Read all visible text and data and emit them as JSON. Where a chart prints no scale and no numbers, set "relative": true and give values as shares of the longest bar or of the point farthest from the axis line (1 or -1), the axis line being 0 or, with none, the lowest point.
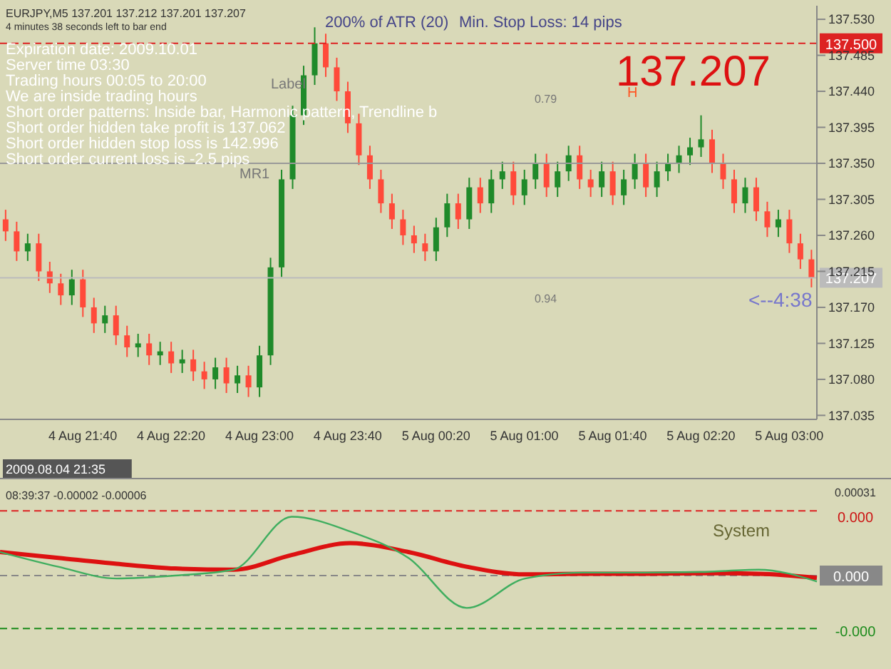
{
  "chart_data": [
    {
      "type": "candlestick",
      "categories": [
        null,
        null,
        null,
        null,
        null,
        null,
        null,
        "4 Aug 21:40",
        null,
        null,
        null,
        null,
        null,
        null,
        null,
        "4 Aug 22:20",
        null,
        null,
        null,
        null,
        null,
        null,
        null,
        "4 Aug 23:00",
        null,
        null,
        null,
        null,
        null,
        null,
        null,
        "4 Aug 23:40",
        null,
        null,
        null,
        null,
        null,
        null,
        null,
        "5 Aug 00:20",
        null,
        null,
        null,
        null,
        null,
        null,
        null,
        "5 Aug 01:00",
        null,
        null,
        null,
        null,
        null,
        null,
        null,
        "5 Aug 01:40",
        null,
        null,
        null,
        null,
        null,
        null,
        null,
        "5 Aug 02:20",
        null,
        null,
        null,
        null,
        null,
        null,
        null,
        "5 Aug 03:00",
        null,
        null
      ],
      "ohlc": [
        [
          137.28,
          137.292,
          137.253,
          137.265
        ],
        [
          137.265,
          137.277,
          137.228,
          137.24
        ],
        [
          137.24,
          137.262,
          137.228,
          137.25
        ],
        [
          137.25,
          137.262,
          137.203,
          137.215
        ],
        [
          137.215,
          137.227,
          137.188,
          137.2
        ],
        [
          137.2,
          137.212,
          137.173,
          137.185
        ],
        [
          137.185,
          137.217,
          137.173,
          137.205
        ],
        [
          137.205,
          137.217,
          137.158,
          137.17
        ],
        [
          137.17,
          137.182,
          137.138,
          137.15
        ],
        [
          137.15,
          137.172,
          137.138,
          137.16
        ],
        [
          137.16,
          137.172,
          137.123,
          137.135
        ],
        [
          137.135,
          137.147,
          137.108,
          137.12
        ],
        [
          137.12,
          137.137,
          137.108,
          137.125
        ],
        [
          137.125,
          137.137,
          137.098,
          137.11
        ],
        [
          137.11,
          137.127,
          137.098,
          137.115
        ],
        [
          137.115,
          137.127,
          137.088,
          137.1
        ],
        [
          137.1,
          137.117,
          137.088,
          137.105
        ],
        [
          137.105,
          137.117,
          137.078,
          137.09
        ],
        [
          137.09,
          137.102,
          137.068,
          137.08
        ],
        [
          137.08,
          137.107,
          137.068,
          137.095
        ],
        [
          137.095,
          137.107,
          137.063,
          137.075
        ],
        [
          137.075,
          137.097,
          137.063,
          137.085
        ],
        [
          137.085,
          137.097,
          137.058,
          137.07
        ],
        [
          137.07,
          137.122,
          137.058,
          137.11
        ],
        [
          137.11,
          137.232,
          137.098,
          137.22
        ],
        [
          137.22,
          137.342,
          137.208,
          137.33
        ],
        [
          137.33,
          137.422,
          137.318,
          137.41
        ],
        [
          137.41,
          137.472,
          137.398,
          137.46
        ],
        [
          137.46,
          137.52,
          137.448,
          137.5
        ],
        [
          137.5,
          137.512,
          137.458,
          137.47
        ],
        [
          137.47,
          137.482,
          137.428,
          137.44
        ],
        [
          137.44,
          137.452,
          137.388,
          137.4
        ],
        [
          137.4,
          137.412,
          137.348,
          137.36
        ],
        [
          137.36,
          137.372,
          137.318,
          137.33
        ],
        [
          137.33,
          137.342,
          137.288,
          137.3
        ],
        [
          137.3,
          137.312,
          137.268,
          137.28
        ],
        [
          137.28,
          137.292,
          137.248,
          137.26
        ],
        [
          137.26,
          137.272,
          137.238,
          137.25
        ],
        [
          137.25,
          137.262,
          137.228,
          137.24
        ],
        [
          137.24,
          137.282,
          137.228,
          137.27
        ],
        [
          137.27,
          137.312,
          137.258,
          137.3
        ],
        [
          137.3,
          137.312,
          137.268,
          137.28
        ],
        [
          137.28,
          137.332,
          137.268,
          137.32
        ],
        [
          137.32,
          137.332,
          137.288,
          137.3
        ],
        [
          137.3,
          137.342,
          137.288,
          137.33
        ],
        [
          137.33,
          137.352,
          137.318,
          137.34
        ],
        [
          137.34,
          137.352,
          137.298,
          137.31
        ],
        [
          137.31,
          137.342,
          137.298,
          137.33
        ],
        [
          137.33,
          137.362,
          137.318,
          137.35
        ],
        [
          137.35,
          137.362,
          137.308,
          137.32
        ],
        [
          137.32,
          137.352,
          137.308,
          137.34
        ],
        [
          137.34,
          137.372,
          137.328,
          137.36
        ],
        [
          137.36,
          137.372,
          137.318,
          137.33
        ],
        [
          137.33,
          137.342,
          137.308,
          137.32
        ],
        [
          137.32,
          137.352,
          137.308,
          137.34
        ],
        [
          137.34,
          137.352,
          137.298,
          137.31
        ],
        [
          137.31,
          137.342,
          137.298,
          137.33
        ],
        [
          137.33,
          137.362,
          137.318,
          137.35
        ],
        [
          137.35,
          137.362,
          137.308,
          137.32
        ],
        [
          137.32,
          137.352,
          137.308,
          137.34
        ],
        [
          137.34,
          137.362,
          137.328,
          137.35
        ],
        [
          137.35,
          137.372,
          137.338,
          137.36
        ],
        [
          137.36,
          137.382,
          137.348,
          137.37
        ],
        [
          137.37,
          137.41,
          137.358,
          137.38
        ],
        [
          137.38,
          137.392,
          137.338,
          137.35
        ],
        [
          137.35,
          137.362,
          137.318,
          137.33
        ],
        [
          137.33,
          137.342,
          137.288,
          137.3
        ],
        [
          137.3,
          137.332,
          137.288,
          137.32
        ],
        [
          137.32,
          137.332,
          137.278,
          137.29
        ],
        [
          137.29,
          137.302,
          137.258,
          137.27
        ],
        [
          137.27,
          137.292,
          137.258,
          137.28
        ],
        [
          137.28,
          137.292,
          137.238,
          137.25
        ],
        [
          137.25,
          137.262,
          137.218,
          137.23
        ],
        [
          137.23,
          137.242,
          137.195,
          137.207
        ]
      ],
      "ylim": [
        137.03,
        137.547
      ],
      "yticks": [
        137.035,
        {
          "value": 137.08,
          "label": "137.080"
        },
        137.125,
        {
          "value": 137.17,
          "label": "137.170"
        },
        137.215,
        {
          "value": 137.26,
          "label": "137.260"
        },
        137.305,
        {
          "value": 137.35,
          "label": "137.350"
        },
        137.395,
        {
          "value": 137.44,
          "label": "137.440"
        },
        137.485,
        {
          "value": 137.53,
          "label": "137.530"
        }
      ],
      "ref_lines": [
        {
          "axis": "y",
          "value": 137.5,
          "label": "137.500",
          "color": "#dd2222",
          "line_style": "dashed"
        },
        {
          "axis": "y",
          "value": 137.35,
          "color": "#999999",
          "line_style": "solid"
        },
        {
          "axis": "y",
          "value": 137.207,
          "label": "137.207",
          "color": "#bbbbbb",
          "line_style": "solid"
        }
      ],
      "annotations": [
        "EURJPY,M5  137.201 137.212 137.201 137.207",
        "4 minutes 38 seconds left to bar end",
        "Expiration date: 2009.10.01",
        "Server time 03:30",
        "Trading hours 00:05 to 20:00",
        "We are inside trading hours",
        "Short order patterns: Inside bar, Harmonic pattern, Trendline b",
        "Short order hidden take profit is 137.062",
        "Short order hidden stop loss is 142.996",
        "Short order current loss is -2.5 pips",
        "200% of ATR (20)",
        "Min. Stop Loss:  14 pips",
        "137.207",
        "2009.08.04 21:35",
        "Label",
        "MR1",
        "H",
        "0.79",
        "0.94",
        "<--4:38"
      ]
    },
    {
      "type": "line",
      "relative": true,
      "categories": [
        null,
        null,
        null,
        null,
        null,
        null,
        null,
        null,
        null,
        null,
        null,
        null,
        null,
        null,
        null
      ],
      "series": [
        {
          "color": "#dd1111",
          "values": [
            0.4,
            0.3,
            0.2,
            0.12,
            0.1,
            0.35,
            0.55,
            0.4,
            0.15,
            0.02,
            0.03,
            0.03,
            0.04,
            0.03,
            -0.04
          ]
        },
        {
          "color": "#3fae5f",
          "values": [
            0.4,
            0.15,
            -0.05,
            0.0,
            0.1,
            1.0,
            0.75,
            0.3,
            -0.55,
            -0.05,
            0.05,
            0.05,
            0.06,
            0.1,
            -0.1
          ]
        }
      ],
      "marker": "none",
      "ref_lines": [
        {
          "axis": "y",
          "value": 1.1,
          "color": "#dd2222",
          "line_style": "dashed"
        },
        {
          "axis": "y",
          "value": 0,
          "label": "0.000",
          "color": "#888888",
          "line_style": "dashed"
        },
        {
          "axis": "y",
          "value": -0.9,
          "color": "#1a8a1a",
          "line_style": "dashed"
        }
      ],
      "annotations": [
        "08:39:37 -0.00002 -0.00006",
        "System",
        "0.00031",
        "0.000",
        "-0.000"
      ]
    }
  ]
}
